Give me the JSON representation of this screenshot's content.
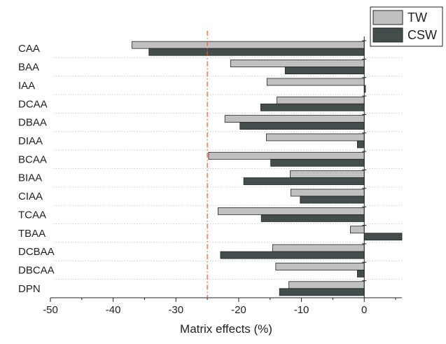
{
  "chart_data": {
    "type": "bar",
    "orientation": "horizontal",
    "title": "",
    "xlabel": "Matrix effects (%)",
    "ylabel": "",
    "xlim": [
      -50,
      6
    ],
    "xticks": [
      -50,
      -40,
      -30,
      -20,
      -10,
      0
    ],
    "x_tick_labels": [
      "-50",
      "-40",
      "-30",
      "-20",
      "-10",
      "0"
    ],
    "reference_line": {
      "x": -25,
      "style": "dash-dot",
      "color": "#e06030"
    },
    "categories": [
      "CAA",
      "BAA",
      "IAA",
      "DCAA",
      "DBAA",
      "DIAA",
      "BCAA",
      "BIAA",
      "CIAA",
      "TCAA",
      "TBAA",
      "DCBAA",
      "DBCAA",
      "DPN"
    ],
    "series": [
      {
        "name": "TW",
        "color": "#c0c0c0",
        "values": [
          -37,
          -21.3,
          -15.5,
          -13.9,
          -22.2,
          -15.6,
          -24.8,
          -11.8,
          -11.7,
          -23.3,
          -2.2,
          -14.6,
          -14.1,
          -12
        ]
      },
      {
        "name": "CSW",
        "color": "#434d4b",
        "values": [
          -34.3,
          -12.6,
          0.2,
          -16.5,
          -19.8,
          -1.1,
          -14.9,
          -19.2,
          -10.2,
          -16.4,
          6,
          -22.9,
          -1.1,
          -13.5
        ]
      }
    ],
    "grid": false,
    "category_separators": true,
    "legend": {
      "placement": "top-right"
    }
  }
}
